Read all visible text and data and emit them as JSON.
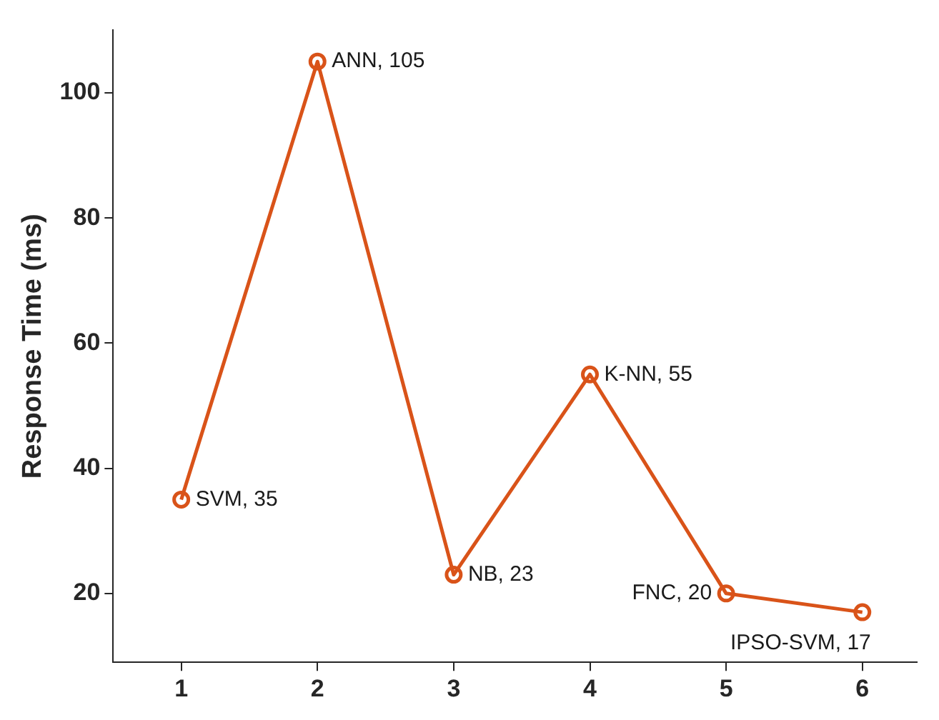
{
  "chart_data": {
    "type": "line",
    "ylabel": "Response Time (ms)",
    "x": [
      1,
      2,
      3,
      4,
      5,
      6
    ],
    "series": [
      {
        "color": "#d95319",
        "values": [
          35,
          105,
          23,
          55,
          20,
          17
        ]
      }
    ],
    "xlim": [
      0.5,
      6.4
    ],
    "xticks": [
      1,
      2,
      3,
      4,
      5,
      6
    ],
    "ylim": [
      9,
      110
    ],
    "yticks": [
      20,
      40,
      60,
      80,
      100
    ],
    "grid": false,
    "legend": false,
    "marker": "circle",
    "line_style": "solid",
    "annotations": [
      {
        "text": "SVM, 35",
        "x": 1,
        "y": 35
      },
      {
        "text": "ANN, 105",
        "x": 2,
        "y": 105
      },
      {
        "text": "NB, 23",
        "x": 3,
        "y": 23
      },
      {
        "text": "K-NN, 55",
        "x": 4,
        "y": 55
      },
      {
        "text": "FNC, 20",
        "x": 5,
        "y": 20
      },
      {
        "text": "IPSO-SVM, 17",
        "x": 6,
        "y": 17
      }
    ]
  }
}
